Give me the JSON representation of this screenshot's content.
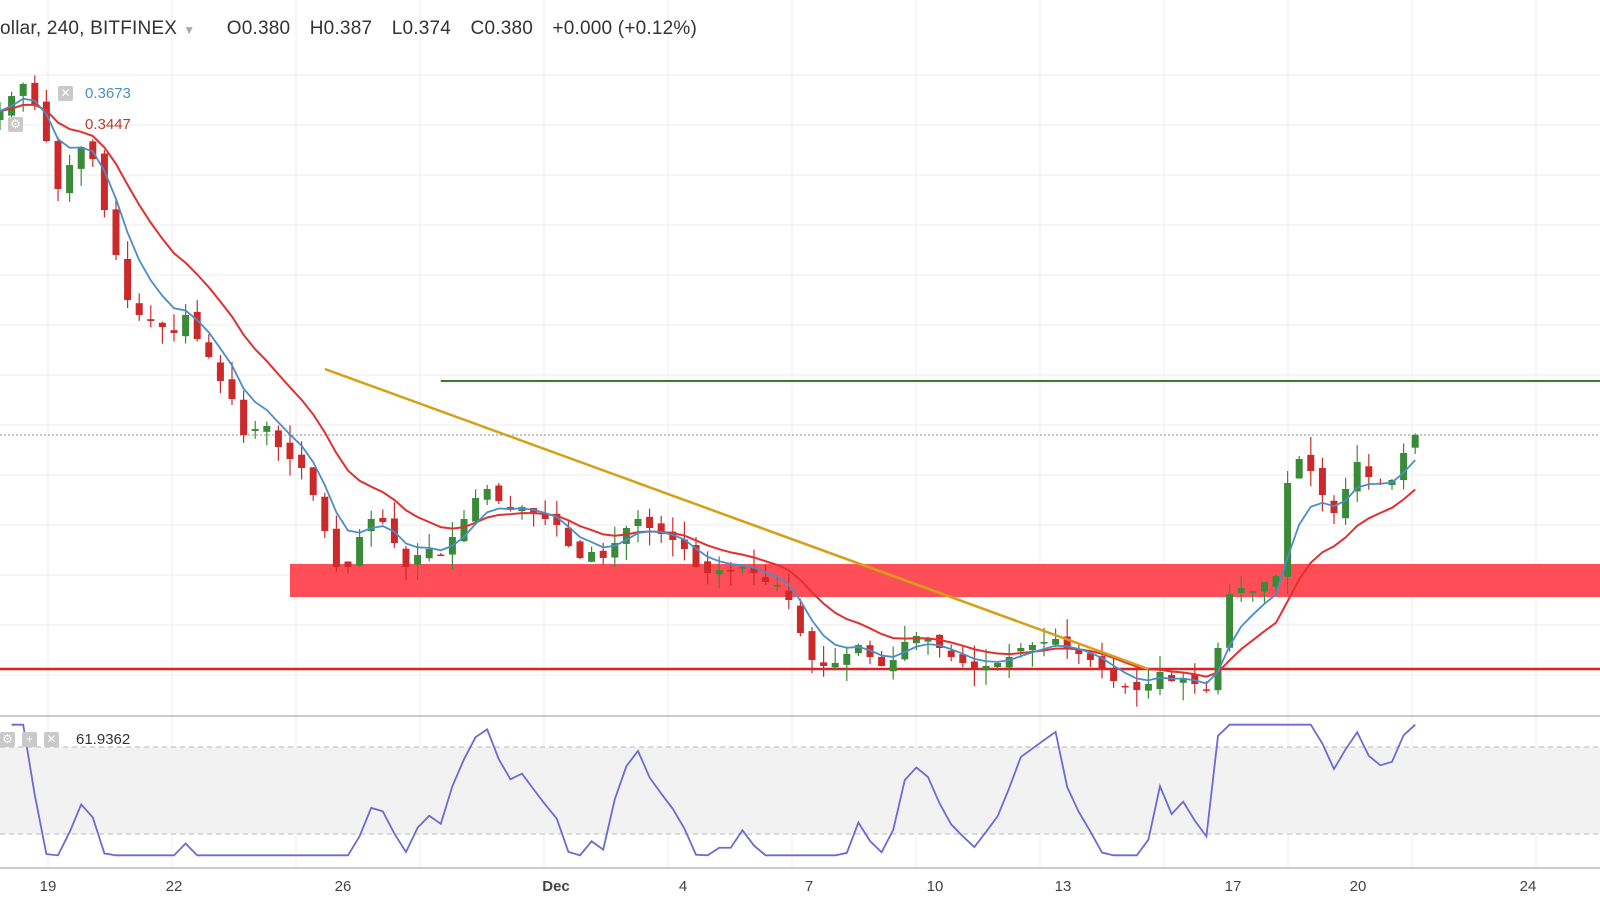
{
  "header": {
    "symbol": "ollar, 240, BITFINEX",
    "open": "O0.380",
    "high": "H0.387",
    "low": "L0.374",
    "close": "C0.380",
    "change": "+0.000 (+0.12%)"
  },
  "indicators": {
    "ma_fast_value": "0.3673",
    "ma_slow_value": "0.3447",
    "rsi_value": "61.9362",
    "colors": {
      "ma_fast": "#4a8ec7",
      "ma_slow": "#e03131",
      "rsi": "#6b6bd1",
      "trendline": "#d4a017",
      "zone": "#ff3b45",
      "resistance": "#3d7a30",
      "support": "#e02020"
    }
  },
  "x_axis": {
    "ticks": [
      {
        "label": "19"
      },
      {
        "label": "22"
      },
      {
        "label": "26"
      },
      {
        "label": "Dec",
        "bold": true
      },
      {
        "label": "4"
      },
      {
        "label": "7"
      },
      {
        "label": "10"
      },
      {
        "label": "13"
      },
      {
        "label": "17"
      },
      {
        "label": "20"
      },
      {
        "label": "24"
      }
    ]
  },
  "chart_data": {
    "type": "candlestick",
    "timeframe": "240",
    "exchange": "BITFINEX",
    "last_close": 0.38,
    "closes": [
      0.488,
      0.493,
      0.497,
      0.49,
      0.478,
      0.462,
      0.47,
      0.476,
      0.472,
      0.455,
      0.44,
      0.425,
      0.42,
      0.418,
      0.416,
      0.414,
      0.42,
      0.412,
      0.406,
      0.398,
      0.392,
      0.38,
      0.382,
      0.383,
      0.376,
      0.372,
      0.369,
      0.36,
      0.348,
      0.336,
      0.336,
      0.346,
      0.352,
      0.351,
      0.344,
      0.336,
      0.34,
      0.342,
      0.34,
      0.346,
      0.352,
      0.359,
      0.362,
      0.358,
      0.355,
      0.356,
      0.354,
      0.352,
      0.35,
      0.343,
      0.339,
      0.341,
      0.339,
      0.344,
      0.349,
      0.352,
      0.349,
      0.347,
      0.345,
      0.342,
      0.336,
      0.334,
      0.335,
      0.335,
      0.336,
      0.334,
      0.331,
      0.33,
      0.325,
      0.314,
      0.305,
      0.303,
      0.304,
      0.307,
      0.31,
      0.306,
      0.303,
      0.305,
      0.311,
      0.313,
      0.312,
      0.309,
      0.306,
      0.304,
      0.302,
      0.303,
      0.304,
      0.306,
      0.309,
      0.31,
      0.311,
      0.312,
      0.309,
      0.307,
      0.305,
      0.302,
      0.298,
      0.296,
      0.295,
      0.297,
      0.301,
      0.298,
      0.299,
      0.297,
      0.295,
      0.309,
      0.327,
      0.329,
      0.328,
      0.331,
      0.333,
      0.364,
      0.372,
      0.368,
      0.36,
      0.354,
      0.362,
      0.371,
      0.366,
      0.364,
      0.365,
      0.374,
      0.38
    ],
    "ma_fast_last": 0.3673,
    "ma_slow_last": 0.3447,
    "rsi_last": 61.9362,
    "y_range": [
      0.29,
      0.51
    ],
    "rsi_range": [
      20,
      80
    ],
    "rsi_band": [
      30,
      70
    ],
    "horizontal_levels": [
      0.398,
      0.302
    ],
    "zone": [
      0.326,
      0.337
    ],
    "trendline": [
      [
        28,
        0.402
      ],
      [
        99,
        0.302
      ]
    ]
  }
}
